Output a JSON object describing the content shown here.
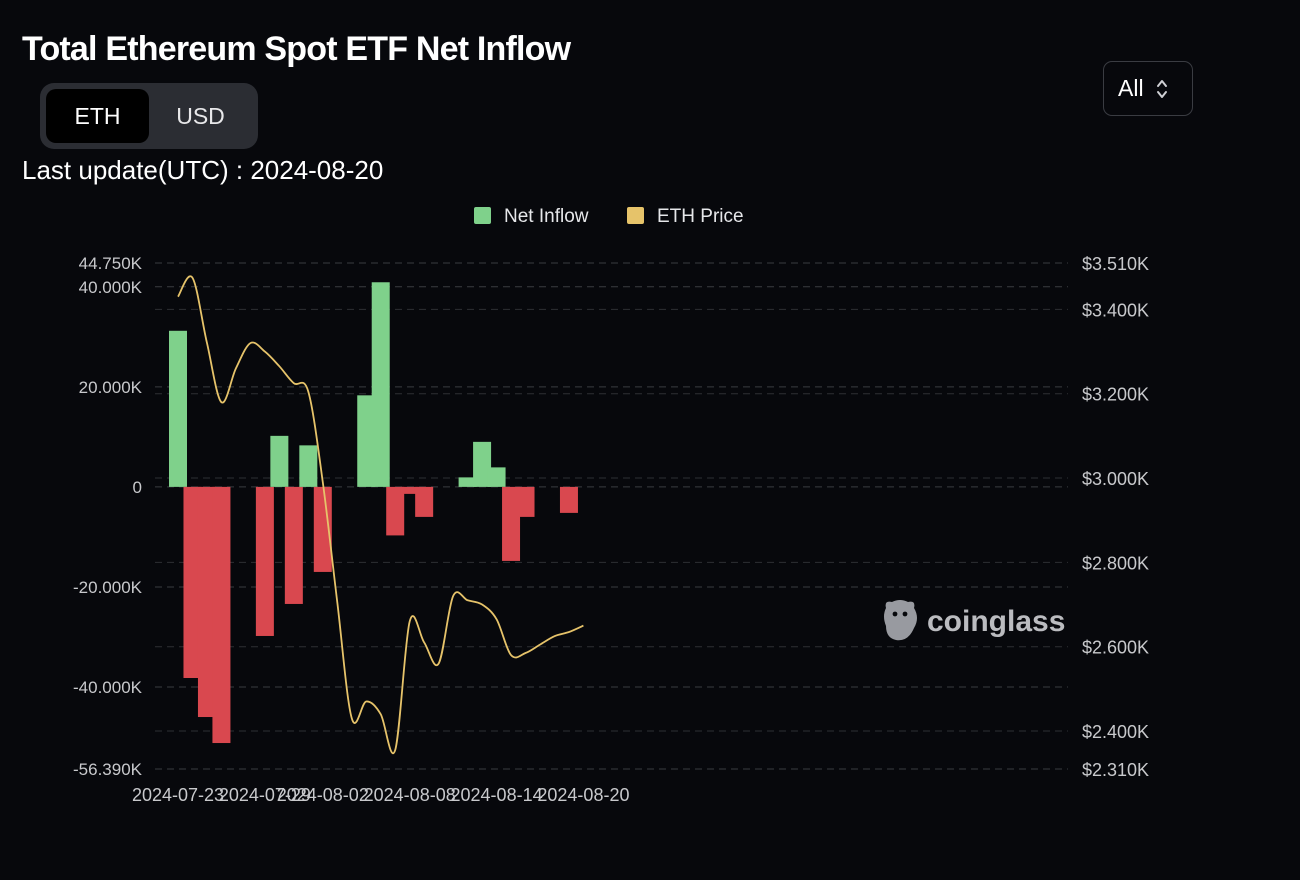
{
  "header": {
    "title": "Total Ethereum Spot ETF Net Inflow",
    "last_update_label": "Last update(UTC) : 2024-08-20"
  },
  "unit_toggle": {
    "options": [
      "ETH",
      "USD"
    ],
    "selected": "ETH"
  },
  "range_select": {
    "value": "All"
  },
  "watermark": {
    "text": "coinglass"
  },
  "colors": {
    "positive": "#7fd18b",
    "negative": "#d9484f",
    "price_line": "#e6c36a",
    "legend_price": "#e6c36a",
    "grid": "#3a3c40",
    "axis_text": "#c8c9cc"
  },
  "chart_data": {
    "type": "bar",
    "legend": [
      "Net Inflow",
      "ETH Price"
    ],
    "x_tick_labels": [
      "2024-07-23",
      "2024-07-29",
      "2024-08-02",
      "2024-08-08",
      "2024-08-14",
      "2024-08-20"
    ],
    "y_left": {
      "min": -56390,
      "max": 44750,
      "tick_values": [
        44750,
        40000,
        20000,
        0,
        -20000,
        -40000,
        -56390
      ],
      "tick_labels": [
        "44.750K",
        "40.000K",
        "20.000K",
        "0",
        "-20.000K",
        "-40.000K",
        "-56.390K"
      ]
    },
    "y_right": {
      "min": 2310,
      "max": 3510,
      "tick_values": [
        3510,
        3400,
        3200,
        3000,
        2800,
        2600,
        2400,
        2310
      ],
      "tick_labels": [
        "$3.510K",
        "$3.400K",
        "$3.200K",
        "$3.000K",
        "$2.800K",
        "$2.600K",
        "$2.400K",
        "$2.310K"
      ]
    },
    "series": [
      {
        "name": "Net Inflow",
        "type": "bar",
        "x": [
          "2024-07-23",
          "2024-07-24",
          "2024-07-25",
          "2024-07-26",
          "2024-07-29",
          "2024-07-30",
          "2024-07-31",
          "2024-08-01",
          "2024-08-02",
          "2024-08-05",
          "2024-08-06",
          "2024-08-07",
          "2024-08-08",
          "2024-08-09",
          "2024-08-12",
          "2024-08-13",
          "2024-08-14",
          "2024-08-15",
          "2024-08-16",
          "2024-08-19"
        ],
        "values": [
          31200,
          -38200,
          -46000,
          -51200,
          -29800,
          10200,
          -23400,
          8300,
          -17000,
          18300,
          40900,
          -9700,
          -1400,
          -6000,
          1900,
          9000,
          3900,
          -14800,
          -6000,
          -5200
        ]
      },
      {
        "name": "ETH Price",
        "type": "line",
        "x": [
          "2024-07-23",
          "2024-07-24",
          "2024-07-25",
          "2024-07-26",
          "2024-07-27",
          "2024-07-28",
          "2024-07-29",
          "2024-07-30",
          "2024-07-31",
          "2024-08-01",
          "2024-08-02",
          "2024-08-03",
          "2024-08-04",
          "2024-08-05",
          "2024-08-06",
          "2024-08-07",
          "2024-08-08",
          "2024-08-09",
          "2024-08-10",
          "2024-08-11",
          "2024-08-12",
          "2024-08-13",
          "2024-08-14",
          "2024-08-15",
          "2024-08-16",
          "2024-08-17",
          "2024-08-18",
          "2024-08-19",
          "2024-08-20"
        ],
        "values": [
          3430,
          3475,
          3320,
          3180,
          3260,
          3320,
          3300,
          3265,
          3225,
          3205,
          2990,
          2705,
          2430,
          2470,
          2440,
          2355,
          2660,
          2610,
          2560,
          2720,
          2710,
          2700,
          2665,
          2580,
          2585,
          2605,
          2625,
          2635,
          2650
        ]
      }
    ]
  }
}
